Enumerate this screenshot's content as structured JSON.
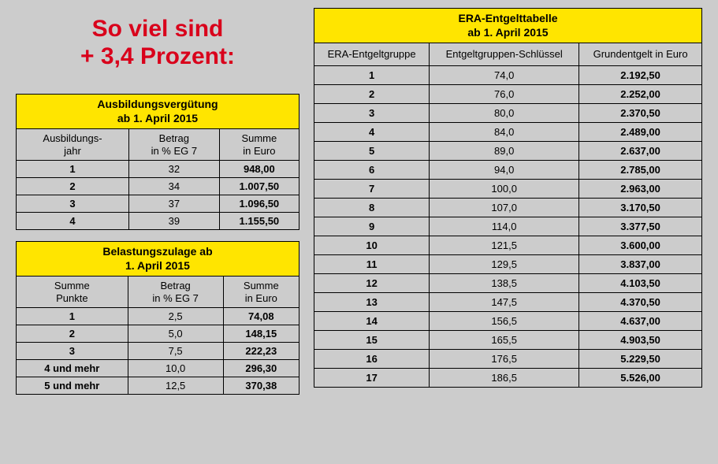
{
  "colors": {
    "background": "#cccccc",
    "accent_yellow": "#ffe500",
    "headline_red": "#d9001b",
    "border": "#000000",
    "text": "#000000"
  },
  "headline": {
    "line1": "So viel sind",
    "line2": "+ 3,4 Prozent:",
    "fontsize": 30,
    "fontweight": 900
  },
  "table_ausbildung": {
    "title_line1": "Ausbildungsvergütung",
    "title_line2": "ab 1. April 2015",
    "columns": [
      {
        "line1": "Ausbildungs-",
        "line2": "jahr",
        "width": "33%"
      },
      {
        "line1": "Betrag",
        "line2": "in % EG 7",
        "width": "33%"
      },
      {
        "line1": "Summe",
        "line2": "in Euro",
        "width": "34%"
      }
    ],
    "rows": [
      {
        "c0": "1",
        "c1": "32",
        "c2": "948,00"
      },
      {
        "c0": "2",
        "c1": "34",
        "c2": "1.007,50"
      },
      {
        "c0": "3",
        "c1": "37",
        "c2": "1.096,50"
      },
      {
        "c0": "4",
        "c1": "39",
        "c2": "1.155,50"
      }
    ]
  },
  "table_belastung": {
    "title_line1": "Belastungszulage ab",
    "title_line2": "1. April 2015",
    "columns": [
      {
        "line1": "Summe",
        "line2": "Punkte",
        "width": "33%"
      },
      {
        "line1": "Betrag",
        "line2": "in % EG 7",
        "width": "33%"
      },
      {
        "line1": "Summe",
        "line2": "in Euro",
        "width": "34%"
      }
    ],
    "rows": [
      {
        "c0": "1",
        "c1": "2,5",
        "c2": "74,08"
      },
      {
        "c0": "2",
        "c1": "5,0",
        "c2": "148,15"
      },
      {
        "c0": "3",
        "c1": "7,5",
        "c2": "222,23"
      },
      {
        "c0": "4 und mehr",
        "c1": "10,0",
        "c2": "296,30"
      },
      {
        "c0": "5 und mehr",
        "c1": "12,5",
        "c2": "370,38"
      }
    ]
  },
  "table_era": {
    "title_line1": "ERA-Entgelttabelle",
    "title_line2": "ab 1. April 2015",
    "columns": [
      {
        "line1": "ERA-Entgeltgruppe",
        "width": "30%"
      },
      {
        "line1": "Entgeltgruppen-Schlüssel",
        "width": "36%"
      },
      {
        "line1": "Grundentgelt in Euro",
        "width": "34%"
      }
    ],
    "rows": [
      {
        "c0": "1",
        "c1": "74,0",
        "c2": "2.192,50"
      },
      {
        "c0": "2",
        "c1": "76,0",
        "c2": "2.252,00"
      },
      {
        "c0": "3",
        "c1": "80,0",
        "c2": "2.370,50"
      },
      {
        "c0": "4",
        "c1": "84,0",
        "c2": "2.489,00"
      },
      {
        "c0": "5",
        "c1": "89,0",
        "c2": "2.637,00"
      },
      {
        "c0": "6",
        "c1": "94,0",
        "c2": "2.785,00"
      },
      {
        "c0": "7",
        "c1": "100,0",
        "c2": "2.963,00"
      },
      {
        "c0": "8",
        "c1": "107,0",
        "c2": "3.170,50"
      },
      {
        "c0": "9",
        "c1": "114,0",
        "c2": "3.377,50"
      },
      {
        "c0": "10",
        "c1": "121,5",
        "c2": "3.600,00"
      },
      {
        "c0": "11",
        "c1": "129,5",
        "c2": "3.837,00"
      },
      {
        "c0": "12",
        "c1": "138,5",
        "c2": "4.103,50"
      },
      {
        "c0": "13",
        "c1": "147,5",
        "c2": "4.370,50"
      },
      {
        "c0": "14",
        "c1": "156,5",
        "c2": "4.637,00"
      },
      {
        "c0": "15",
        "c1": "165,5",
        "c2": "4.903,50"
      },
      {
        "c0": "16",
        "c1": "176,5",
        "c2": "5.229,50"
      },
      {
        "c0": "17",
        "c1": "186,5",
        "c2": "5.526,00"
      }
    ]
  }
}
